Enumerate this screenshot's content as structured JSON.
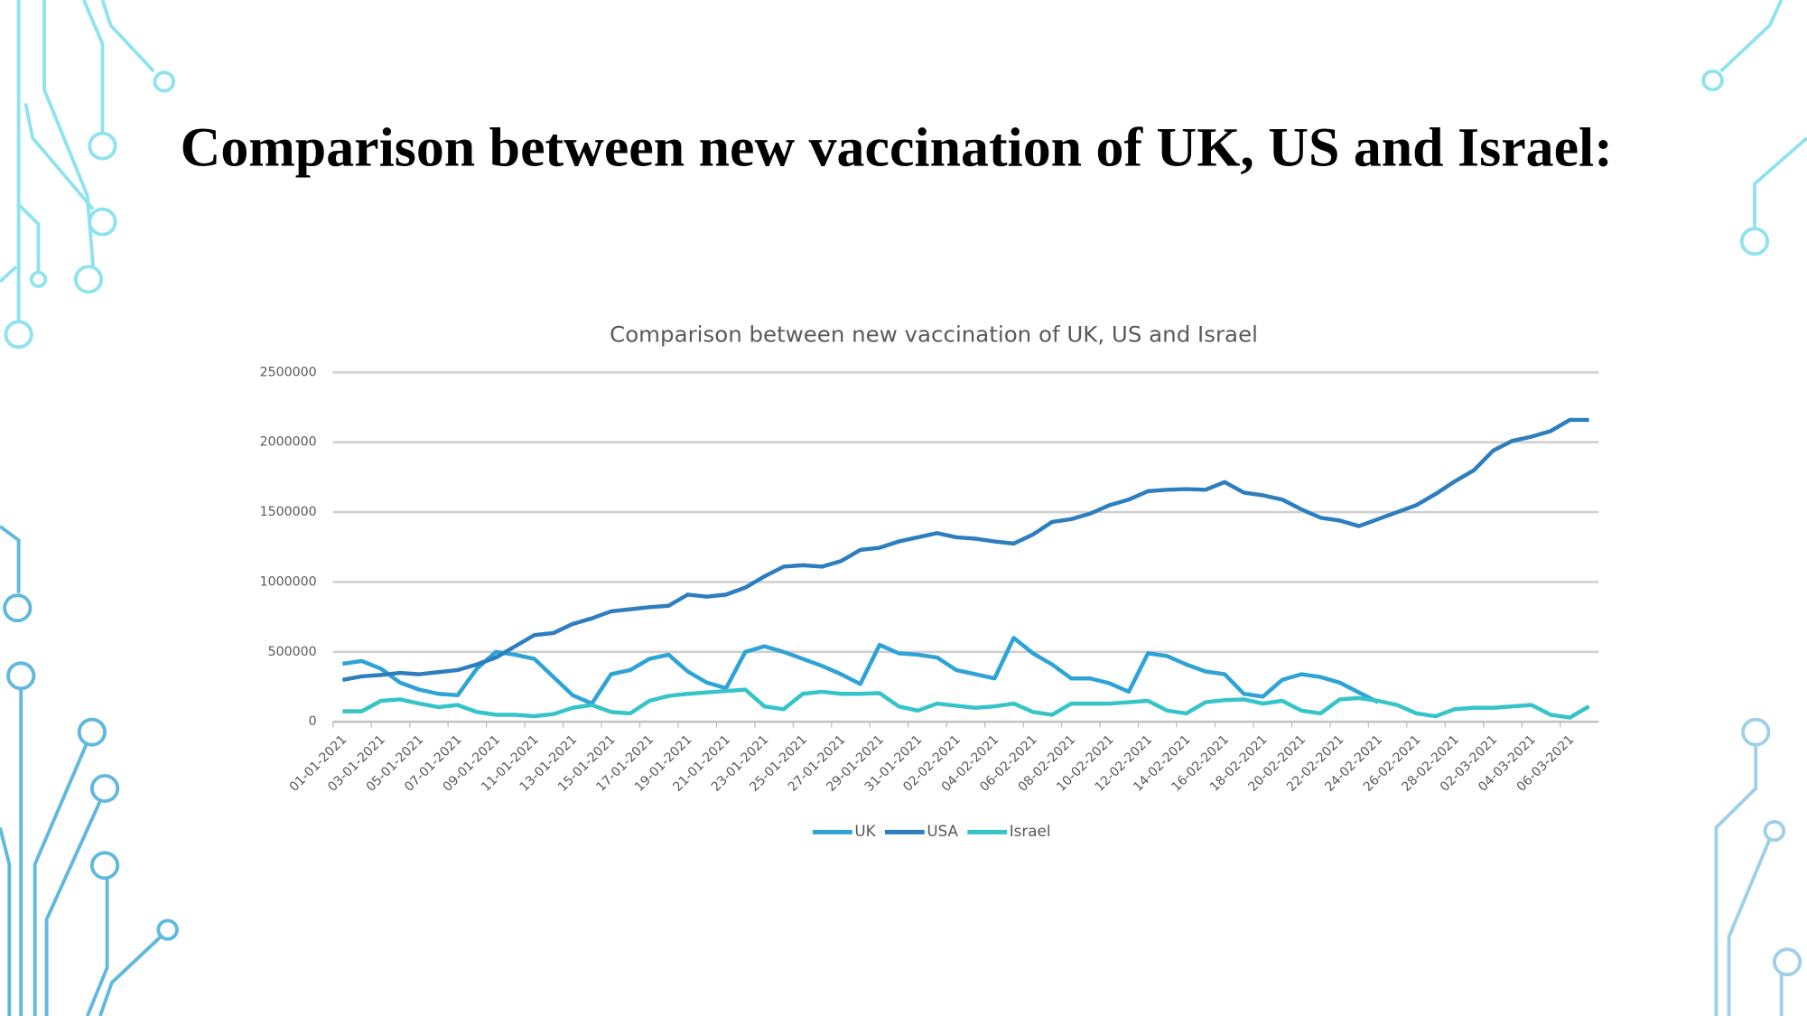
{
  "title": "Comparison between new vaccination of UK, US and Israel:",
  "chart_data": {
    "type": "line",
    "title": "Comparison between new vaccination of UK, US and Israel",
    "categories": [
      "01-01-2021",
      null,
      "03-01-2021",
      null,
      "05-01-2021",
      null,
      "07-01-2021",
      null,
      "09-01-2021",
      null,
      "11-01-2021",
      null,
      "13-01-2021",
      null,
      "15-01-2021",
      null,
      "17-01-2021",
      null,
      "19-01-2021",
      null,
      "21-01-2021",
      null,
      "23-01-2021",
      null,
      "25-01-2021",
      null,
      "27-01-2021",
      null,
      "29-01-2021",
      null,
      "31-01-2021",
      null,
      "02-02-2021",
      null,
      "04-02-2021",
      null,
      "06-02-2021",
      null,
      "08-02-2021",
      null,
      "10-02-2021",
      null,
      "12-02-2021",
      null,
      "14-02-2021",
      null,
      "16-02-2021",
      null,
      "18-02-2021",
      null,
      "20-02-2021",
      null,
      "22-02-2021",
      null,
      "24-02-2021",
      null,
      "26-02-2021",
      null,
      "28-02-2021",
      null,
      "02-03-2021",
      null,
      "04-03-2021",
      null,
      "06-03-2021",
      null
    ],
    "series": [
      {
        "name": "UK",
        "color": "#2ea3d6",
        "values": [
          415000,
          435000,
          380000,
          280000,
          230000,
          200000,
          190000,
          380000,
          500000,
          480000,
          450000,
          320000,
          190000,
          130000,
          340000,
          370000,
          450000,
          480000,
          360000,
          280000,
          240000,
          500000,
          540000,
          500000,
          450000,
          400000,
          340000,
          270000,
          550000,
          490000,
          480000,
          460000,
          370000,
          340000,
          310000,
          600000,
          490000,
          410000,
          310000,
          310000,
          275000,
          215000,
          490000,
          470000,
          410000,
          360000,
          340000,
          200000,
          180000,
          300000,
          340000,
          320000,
          280000,
          210000,
          140000,
          null,
          null,
          null,
          null,
          null,
          null,
          null,
          null,
          null,
          null,
          null
        ]
      },
      {
        "name": "USA",
        "color": "#2e7ebf",
        "values": [
          300000,
          325000,
          335000,
          350000,
          340000,
          355000,
          370000,
          410000,
          460000,
          540000,
          620000,
          635000,
          700000,
          740000,
          790000,
          805000,
          820000,
          830000,
          910000,
          895000,
          910000,
          960000,
          1040000,
          1110000,
          1120000,
          1110000,
          1150000,
          1230000,
          1245000,
          1290000,
          1320000,
          1350000,
          1320000,
          1310000,
          1290000,
          1275000,
          1340000,
          1430000,
          1450000,
          1490000,
          1550000,
          1590000,
          1650000,
          1660000,
          1665000,
          1660000,
          1715000,
          1640000,
          1620000,
          1590000,
          1520000,
          1460000,
          1440000,
          1400000,
          1450000,
          1500000,
          1550000,
          1630000,
          1720000,
          1800000,
          1940000,
          2010000,
          2040000,
          2080000,
          2160000,
          2160000
        ]
      },
      {
        "name": "Israel",
        "color": "#35c4c8",
        "values": [
          75000,
          75000,
          150000,
          160000,
          130000,
          105000,
          120000,
          70000,
          50000,
          50000,
          40000,
          55000,
          100000,
          120000,
          70000,
          60000,
          150000,
          185000,
          200000,
          210000,
          220000,
          230000,
          110000,
          90000,
          200000,
          215000,
          200000,
          200000,
          205000,
          110000,
          80000,
          130000,
          115000,
          100000,
          110000,
          130000,
          70000,
          50000,
          130000,
          130000,
          130000,
          140000,
          150000,
          80000,
          60000,
          140000,
          155000,
          160000,
          130000,
          150000,
          80000,
          60000,
          160000,
          170000,
          150000,
          120000,
          60000,
          40000,
          90000,
          100000,
          100000,
          110000,
          120000,
          50000,
          30000,
          110000
        ]
      }
    ],
    "ylim": [
      0,
      2500000
    ],
    "yticks": [
      0,
      500000,
      1000000,
      1500000,
      2000000,
      2500000
    ],
    "grid": true,
    "legend": "bottom"
  }
}
